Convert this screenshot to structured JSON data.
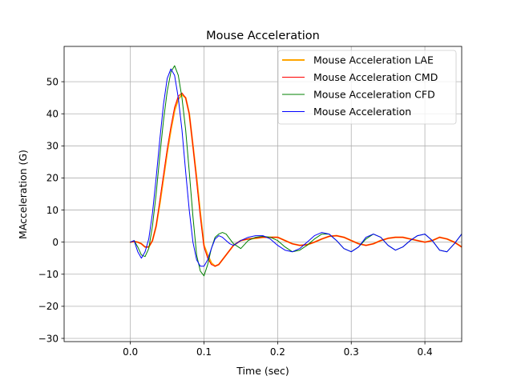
{
  "chart_data": {
    "type": "line",
    "title": "Mouse Acceleration",
    "xlabel": "Time (sec)",
    "ylabel": "MAcceleration (G)",
    "xlim": [
      -0.09,
      0.45
    ],
    "ylim": [
      -31,
      61
    ],
    "xticks": [
      0.0,
      0.1,
      0.2,
      0.3,
      0.4
    ],
    "xtick_labels": [
      "0.0",
      "0.1",
      "0.2",
      "0.3",
      "0.4"
    ],
    "yticks": [
      -30,
      -20,
      -10,
      0,
      10,
      20,
      30,
      40,
      50
    ],
    "ytick_labels": [
      "−30",
      "−20",
      "−10",
      "0",
      "10",
      "20",
      "30",
      "40",
      "50"
    ],
    "grid": true,
    "legend_position": "top-right",
    "series": [
      {
        "name": "Mouse Acceleration LAE",
        "color": "#ffa500",
        "linewidth": 2,
        "x": [
          0.0,
          0.005,
          0.01,
          0.015,
          0.02,
          0.025,
          0.03,
          0.035,
          0.04,
          0.045,
          0.05,
          0.055,
          0.06,
          0.065,
          0.07,
          0.075,
          0.08,
          0.085,
          0.09,
          0.095,
          0.1,
          0.105,
          0.11,
          0.115,
          0.12,
          0.125,
          0.13,
          0.135,
          0.14,
          0.15,
          0.16,
          0.17,
          0.18,
          0.19,
          0.2,
          0.21,
          0.22,
          0.23,
          0.24,
          0.25,
          0.26,
          0.27,
          0.28,
          0.29,
          0.3,
          0.31,
          0.32,
          0.33,
          0.34,
          0.35,
          0.36,
          0.37,
          0.38,
          0.39,
          0.4,
          0.41,
          0.42,
          0.43,
          0.44,
          0.45
        ],
        "values": [
          0,
          0.2,
          0,
          -0.5,
          -1.5,
          -1.5,
          0.5,
          5,
          12,
          20,
          28,
          35,
          41,
          44.5,
          46,
          45,
          40,
          30,
          20,
          9,
          -1,
          -4,
          -6.5,
          -7.5,
          -7,
          -5.5,
          -4,
          -2.5,
          -1,
          0.5,
          1,
          1.2,
          1.5,
          1.5,
          1.5,
          0.5,
          -0.5,
          -1,
          -0.8,
          0,
          1,
          1.8,
          2,
          1.5,
          0.5,
          -0.5,
          -1,
          -0.5,
          0.5,
          1.2,
          1.5,
          1.5,
          1,
          0.5,
          0,
          0.5,
          1.5,
          1,
          0,
          -1.5
        ]
      },
      {
        "name": "Mouse Acceleration CMD",
        "color": "#ff0000",
        "linewidth": 1,
        "x": [
          0.0,
          0.005,
          0.01,
          0.015,
          0.02,
          0.025,
          0.03,
          0.035,
          0.04,
          0.045,
          0.05,
          0.055,
          0.06,
          0.065,
          0.07,
          0.075,
          0.08,
          0.085,
          0.09,
          0.095,
          0.1,
          0.105,
          0.11,
          0.115,
          0.12,
          0.125,
          0.13,
          0.135,
          0.14,
          0.15,
          0.16,
          0.17,
          0.18,
          0.19,
          0.2,
          0.21,
          0.22,
          0.23,
          0.24,
          0.25,
          0.26,
          0.27,
          0.28,
          0.29,
          0.3,
          0.31,
          0.32,
          0.33,
          0.34,
          0.35,
          0.36,
          0.37,
          0.38,
          0.39,
          0.4,
          0.41,
          0.42,
          0.43,
          0.44,
          0.45
        ],
        "values": [
          0,
          0.2,
          0,
          -0.5,
          -1.5,
          -1.5,
          0.5,
          5,
          13,
          21,
          29,
          36,
          42,
          45.5,
          46.5,
          45,
          40,
          30,
          19,
          8,
          -1.5,
          -5,
          -7,
          -7.5,
          -7,
          -5.5,
          -4,
          -2.5,
          -1,
          0.5,
          1,
          1.3,
          1.5,
          1.5,
          1.5,
          0.5,
          -0.5,
          -1,
          -0.8,
          0,
          1,
          1.8,
          2,
          1.5,
          0.5,
          -0.5,
          -1,
          -0.5,
          0.5,
          1.2,
          1.5,
          1.5,
          1,
          0.5,
          0,
          0.5,
          1.5,
          1,
          0,
          -1.5
        ]
      },
      {
        "name": "Mouse Acceleration CFD",
        "color": "#008000",
        "linewidth": 1,
        "x": [
          0.0,
          0.005,
          0.01,
          0.015,
          0.02,
          0.025,
          0.03,
          0.035,
          0.04,
          0.045,
          0.05,
          0.055,
          0.06,
          0.065,
          0.07,
          0.075,
          0.08,
          0.085,
          0.09,
          0.095,
          0.1,
          0.105,
          0.11,
          0.115,
          0.12,
          0.125,
          0.13,
          0.135,
          0.14,
          0.15,
          0.16,
          0.17,
          0.18,
          0.19,
          0.2,
          0.21,
          0.22,
          0.23,
          0.24,
          0.25,
          0.26,
          0.27,
          0.28,
          0.29,
          0.3,
          0.31,
          0.32,
          0.33,
          0.34,
          0.35,
          0.36,
          0.37,
          0.38,
          0.39,
          0.4,
          0.41,
          0.42,
          0.43,
          0.44,
          0.45
        ],
        "values": [
          0,
          0.5,
          -1.5,
          -4,
          -4.5,
          -2,
          5,
          15,
          27,
          38,
          47,
          53,
          55,
          52,
          45,
          35,
          22,
          8,
          -4,
          -9,
          -10.5,
          -7,
          -2,
          1.5,
          2.5,
          3,
          2.5,
          1,
          -0.5,
          -2,
          0.5,
          1.5,
          1.8,
          1.5,
          0.5,
          -1.5,
          -3,
          -2.5,
          -1,
          1,
          2.5,
          2.5,
          0.5,
          -2,
          -3,
          -1.5,
          1,
          2.5,
          1.5,
          -1,
          -2.5,
          -1.5,
          0.5,
          2,
          2.5,
          0.5,
          -2.5,
          -3,
          -0.5,
          2.5
        ]
      },
      {
        "name": "Mouse Acceleration",
        "color": "#0000ff",
        "linewidth": 1,
        "x": [
          0.0,
          0.005,
          0.01,
          0.015,
          0.02,
          0.025,
          0.03,
          0.035,
          0.04,
          0.045,
          0.05,
          0.055,
          0.06,
          0.065,
          0.07,
          0.075,
          0.08,
          0.085,
          0.09,
          0.095,
          0.1,
          0.105,
          0.11,
          0.115,
          0.12,
          0.125,
          0.13,
          0.135,
          0.14,
          0.15,
          0.16,
          0.17,
          0.18,
          0.19,
          0.2,
          0.21,
          0.22,
          0.23,
          0.24,
          0.25,
          0.26,
          0.27,
          0.28,
          0.29,
          0.3,
          0.31,
          0.32,
          0.33,
          0.34,
          0.35,
          0.36,
          0.37,
          0.38,
          0.39,
          0.4,
          0.41,
          0.42,
          0.43,
          0.44,
          0.45
        ],
        "values": [
          0,
          0.5,
          -3,
          -5,
          -3,
          1,
          9,
          20,
          32,
          43,
          51,
          54,
          52,
          45,
          35,
          22,
          10,
          0,
          -5.5,
          -7.5,
          -7.5,
          -5.5,
          -2,
          1,
          2,
          1.5,
          0.5,
          -0.5,
          -1,
          0.5,
          1.5,
          2,
          2,
          1,
          -1,
          -2.5,
          -3,
          -2,
          0,
          2,
          3,
          2.5,
          0.5,
          -2,
          -3,
          -1.5,
          1.5,
          2.5,
          1.5,
          -1,
          -2.5,
          -1.5,
          0.5,
          2,
          2.5,
          0.5,
          -2.5,
          -3,
          -0.5,
          2.5
        ]
      }
    ]
  }
}
